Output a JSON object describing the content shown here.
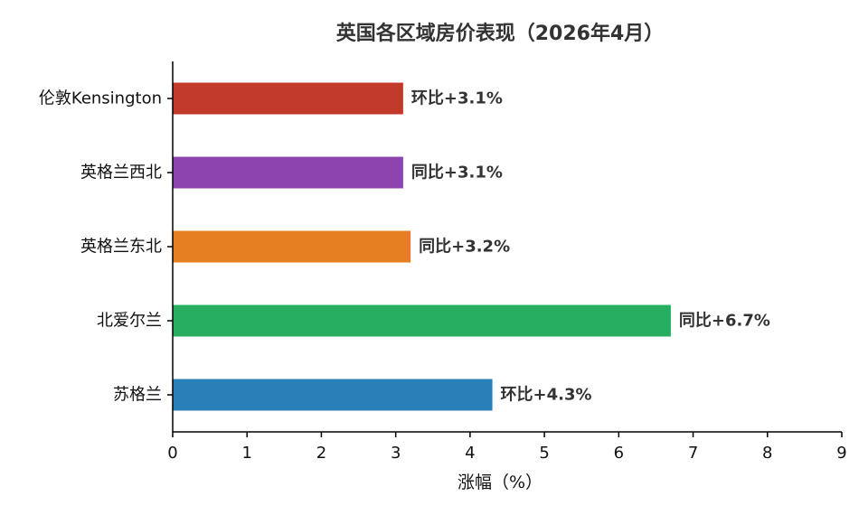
{
  "chart_data": {
    "type": "bar",
    "orientation": "horizontal",
    "title": "英国各区域房价表现（2026年4月）",
    "xlabel": "涨幅（%）",
    "ylabel": "",
    "xlim": [
      0,
      9
    ],
    "xticks": [
      "0",
      "1",
      "2",
      "3",
      "4",
      "5",
      "6",
      "7",
      "8",
      "9"
    ],
    "grid": false,
    "categories": [
      "伦敦Kensington",
      "英格兰西北",
      "英格兰东北",
      "北爱尔兰",
      "苏格兰"
    ],
    "values": [
      3.1,
      3.1,
      3.2,
      6.7,
      4.3
    ],
    "data_labels": [
      "环比+3.1%",
      "同比+3.1%",
      "同比+3.2%",
      "同比+6.7%",
      "环比+4.3%"
    ],
    "colors": [
      "#c0392b",
      "#8e44ad",
      "#e67e22",
      "#27ae60",
      "#2980b9"
    ]
  }
}
